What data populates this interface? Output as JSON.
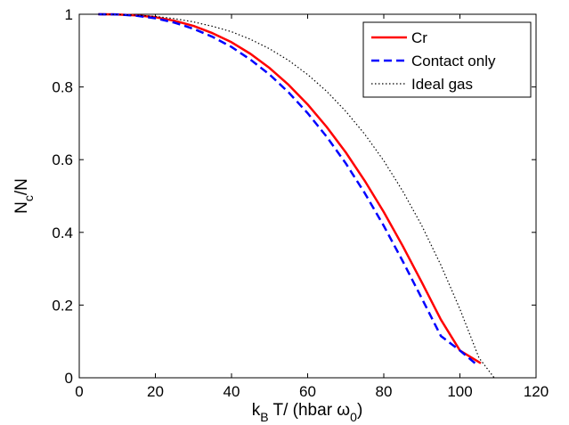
{
  "chart_data": {
    "type": "line",
    "xlabel": {
      "main": "k",
      "sub": "B",
      "rest": " T/ (hbar ω",
      "sub2": "0",
      "close": ")"
    },
    "ylabel": {
      "main": "N",
      "sub": "c",
      "rest": "/N"
    },
    "xlim": [
      0,
      120
    ],
    "ylim": [
      0,
      1
    ],
    "xticks": [
      0,
      20,
      40,
      60,
      80,
      100,
      120
    ],
    "yticks": [
      0,
      0.2,
      0.4,
      0.6,
      0.8,
      1
    ],
    "xtick_labels": [
      "0",
      "20",
      "40",
      "60",
      "80",
      "100",
      "120"
    ],
    "ytick_labels": [
      "0",
      "0.2",
      "0.4",
      "0.6",
      "0.8",
      "1"
    ],
    "grid": false,
    "legend_position": "top-right",
    "series": [
      {
        "name": "Cr",
        "color": "#ff0000",
        "style": "solid",
        "x": [
          5,
          10,
          15,
          20,
          25,
          30,
          35,
          40,
          45,
          50,
          55,
          60,
          65,
          70,
          75,
          80,
          85,
          90,
          95,
          100,
          105.5
        ],
        "y": [
          1.0,
          0.9995,
          0.997,
          0.992,
          0.982,
          0.968,
          0.948,
          0.923,
          0.891,
          0.852,
          0.806,
          0.752,
          0.69,
          0.62,
          0.542,
          0.456,
          0.362,
          0.262,
          0.16,
          0.075,
          0.04
        ]
      },
      {
        "name": "Contact only",
        "color": "#0000ff",
        "style": "dashed",
        "x": [
          5,
          10,
          15,
          20,
          25,
          30,
          35,
          40,
          45,
          50,
          55,
          60,
          65,
          70,
          75,
          80,
          85,
          90,
          95,
          100,
          104
        ],
        "y": [
          1.0,
          0.9995,
          0.996,
          0.989,
          0.977,
          0.96,
          0.938,
          0.91,
          0.875,
          0.834,
          0.785,
          0.728,
          0.663,
          0.59,
          0.508,
          0.418,
          0.32,
          0.218,
          0.115,
          0.075,
          0.04
        ]
      },
      {
        "name": "Ideal gas",
        "color": "#000000",
        "style": "dotted",
        "x": [
          5,
          10,
          15,
          20,
          25,
          30,
          35,
          40,
          45,
          50,
          55,
          60,
          65,
          70,
          75,
          80,
          85,
          90,
          95,
          100,
          105,
          109
        ],
        "y": [
          1.0,
          0.9992,
          0.9975,
          0.994,
          0.988,
          0.979,
          0.967,
          0.952,
          0.931,
          0.905,
          0.873,
          0.834,
          0.788,
          0.733,
          0.67,
          0.597,
          0.513,
          0.418,
          0.31,
          0.189,
          0.055,
          0.0
        ]
      }
    ]
  }
}
